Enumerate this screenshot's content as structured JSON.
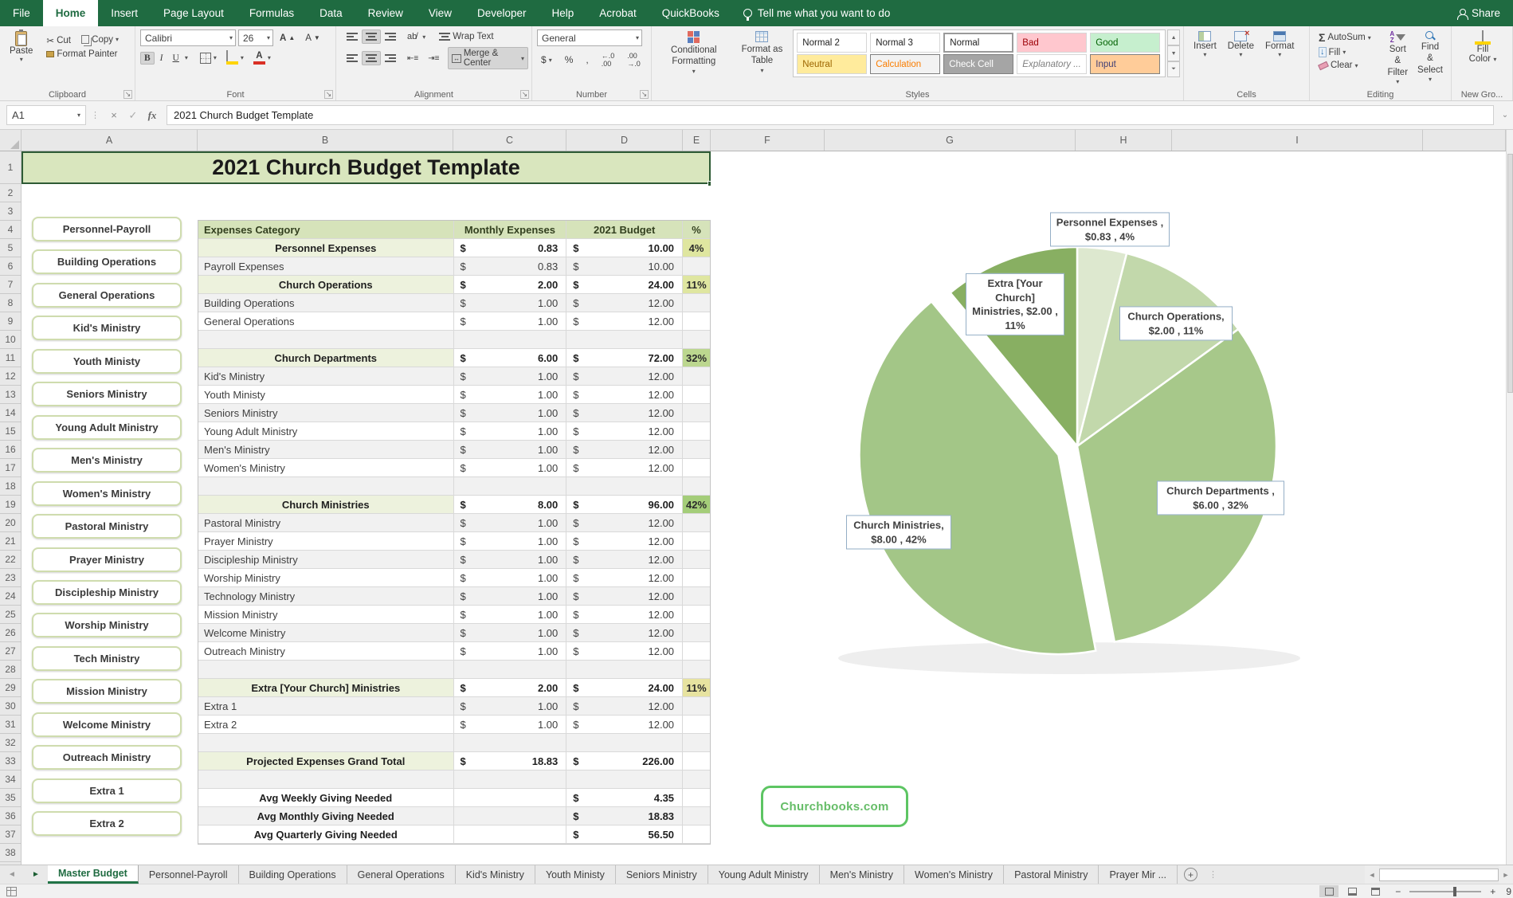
{
  "ribbon": {
    "tabs": [
      {
        "label": "File",
        "active": false
      },
      {
        "label": "Home",
        "active": true
      },
      {
        "label": "Insert",
        "active": false
      },
      {
        "label": "Page Layout",
        "active": false
      },
      {
        "label": "Formulas",
        "active": false
      },
      {
        "label": "Data",
        "active": false
      },
      {
        "label": "Review",
        "active": false
      },
      {
        "label": "View",
        "active": false
      },
      {
        "label": "Developer",
        "active": false
      },
      {
        "label": "Help",
        "active": false
      },
      {
        "label": "Acrobat",
        "active": false
      },
      {
        "label": "QuickBooks",
        "active": false
      }
    ],
    "tell_me": "Tell me what you want to do",
    "share_label": "Share",
    "clipboard": {
      "label": "Clipboard",
      "paste": "Paste",
      "cut": "Cut",
      "copy": "Copy",
      "format_painter": "Format Painter"
    },
    "font": {
      "label": "Font",
      "family": "Calibri",
      "size": "26"
    },
    "alignment": {
      "label": "Alignment",
      "wrap_text": "Wrap Text",
      "merge_center": "Merge & Center"
    },
    "number": {
      "label": "Number",
      "format": "General"
    },
    "styles": {
      "label": "Styles",
      "conditional": "Conditional Formatting",
      "format_table": "Format as Table",
      "gallery": [
        {
          "label": "Normal 2",
          "bg": "#ffffff",
          "color": "#1f1f1f"
        },
        {
          "label": "Normal 3",
          "bg": "#ffffff",
          "color": "#1f1f1f"
        },
        {
          "label": "Normal",
          "bg": "#ffffff",
          "color": "#1f1f1f",
          "selected": true
        },
        {
          "label": "Bad",
          "bg": "#ffc7ce",
          "color": "#9c0006"
        },
        {
          "label": "Good",
          "bg": "#c6efce",
          "color": "#006100"
        },
        {
          "label": "Neutral",
          "bg": "#ffeb9c",
          "color": "#9c6500"
        },
        {
          "label": "Calculation",
          "bg": "#f2f2f2",
          "color": "#fa7d00",
          "bordered": true
        },
        {
          "label": "Check Cell",
          "bg": "#a5a5a5",
          "color": "#ffffff",
          "bordered": true
        },
        {
          "label": "Explanatory ...",
          "bg": "#ffffff",
          "color": "#7f7f7f",
          "italic": true
        },
        {
          "label": "Input",
          "bg": "#ffcc99",
          "color": "#3f3f76",
          "bordered": true
        }
      ]
    },
    "cells": {
      "label": "Cells",
      "insert": "Insert",
      "delete": "Delete",
      "format": "Format"
    },
    "editing": {
      "label": "Editing",
      "autosum": "AutoSum",
      "fill": "Fill",
      "clear": "Clear",
      "sort_filter": "Sort & Filter",
      "find_select": "Find & Select"
    },
    "new_group": {
      "label": "New Gro...",
      "fill_color_line1": "Fill",
      "fill_color_line2": "Color"
    }
  },
  "formula_bar": {
    "name_box": "A1",
    "formula": "2021 Church Budget Template"
  },
  "grid": {
    "columns": [
      "A",
      "B",
      "C",
      "D",
      "E",
      "F",
      "G",
      "H",
      "I"
    ],
    "row_count": 39
  },
  "sheet": {
    "title": "2021 Church Budget Template",
    "nav_buttons": [
      "Personnel-Payroll",
      "Building Operations",
      "General Operations",
      "Kid's Ministry",
      "Youth Ministy",
      "Seniors Ministry",
      "Young Adult Ministry",
      "Men's Ministry",
      "Women's Ministry",
      "Pastoral Ministry",
      "Prayer Ministry",
      "Discipleship Ministry",
      "Worship Ministry",
      "Tech Ministry",
      "Mission Ministry",
      "Welcome Ministry",
      "Outreach Ministry",
      "Extra 1",
      "Extra 2"
    ],
    "table": {
      "headers": [
        "Expenses Category",
        "Monthly Expenses",
        "2021 Budget",
        "%"
      ],
      "currency_symbol": "$",
      "rows": [
        {
          "row": 5,
          "type": "category",
          "label": "Personnel Expenses",
          "monthly": "0.83",
          "budget": "10.00",
          "pct": "4%",
          "pct_bg": "#dfe6a0"
        },
        {
          "row": 6,
          "type": "item",
          "label": "Payroll Expenses",
          "monthly": "0.83",
          "budget": "10.00"
        },
        {
          "row": 7,
          "type": "category",
          "label": "Church Operations",
          "monthly": "2.00",
          "budget": "24.00",
          "pct": "11%",
          "pct_bg": "#dfe6a0"
        },
        {
          "row": 8,
          "type": "item",
          "label": "Building Operations",
          "monthly": "1.00",
          "budget": "12.00"
        },
        {
          "row": 9,
          "type": "item",
          "label": "General Operations",
          "monthly": "1.00",
          "budget": "12.00"
        },
        {
          "row": 10,
          "type": "blank"
        },
        {
          "row": 11,
          "type": "category",
          "label": "Church Departments",
          "monthly": "6.00",
          "budget": "72.00",
          "pct": "32%",
          "pct_bg": "#bcd78f"
        },
        {
          "row": 12,
          "type": "item",
          "label": "Kid's Ministry",
          "monthly": "1.00",
          "budget": "12.00"
        },
        {
          "row": 13,
          "type": "item",
          "label": "Youth Ministy",
          "monthly": "1.00",
          "budget": "12.00"
        },
        {
          "row": 14,
          "type": "item",
          "label": "Seniors Ministry",
          "monthly": "1.00",
          "budget": "12.00"
        },
        {
          "row": 15,
          "type": "item",
          "label": "Young Adult Ministry",
          "monthly": "1.00",
          "budget": "12.00"
        },
        {
          "row": 16,
          "type": "item",
          "label": "Men's Ministry",
          "monthly": "1.00",
          "budget": "12.00"
        },
        {
          "row": 17,
          "type": "item",
          "label": "Women's Ministry",
          "monthly": "1.00",
          "budget": "12.00"
        },
        {
          "row": 18,
          "type": "blank"
        },
        {
          "row": 19,
          "type": "category",
          "label": "Church Ministries",
          "monthly": "8.00",
          "budget": "96.00",
          "pct": "42%",
          "pct_bg": "#a4cd79"
        },
        {
          "row": 20,
          "type": "item",
          "label": "Pastoral Ministry",
          "monthly": "1.00",
          "budget": "12.00"
        },
        {
          "row": 21,
          "type": "item",
          "label": "Prayer Ministry",
          "monthly": "1.00",
          "budget": "12.00"
        },
        {
          "row": 22,
          "type": "item",
          "label": "Discipleship Ministry",
          "monthly": "1.00",
          "budget": "12.00"
        },
        {
          "row": 23,
          "type": "item",
          "label": "Worship Ministry",
          "monthly": "1.00",
          "budget": "12.00"
        },
        {
          "row": 24,
          "type": "item",
          "label": "Technology Ministry",
          "monthly": "1.00",
          "budget": "12.00"
        },
        {
          "row": 25,
          "type": "item",
          "label": "Mission Ministry",
          "monthly": "1.00",
          "budget": "12.00"
        },
        {
          "row": 26,
          "type": "item",
          "label": "Welcome Ministry",
          "monthly": "1.00",
          "budget": "12.00"
        },
        {
          "row": 27,
          "type": "item",
          "label": "Outreach Ministry",
          "monthly": "1.00",
          "budget": "12.00"
        },
        {
          "row": 28,
          "type": "blank"
        },
        {
          "row": 29,
          "type": "category",
          "label": "Extra [Your Church] Ministries",
          "monthly": "2.00",
          "budget": "24.00",
          "pct": "11%",
          "pct_bg": "#e7e3a0"
        },
        {
          "row": 30,
          "type": "item",
          "label": "Extra 1",
          "monthly": "1.00",
          "budget": "12.00"
        },
        {
          "row": 31,
          "type": "item",
          "label": "Extra 2",
          "monthly": "1.00",
          "budget": "12.00"
        },
        {
          "row": 32,
          "type": "blank"
        },
        {
          "row": 33,
          "type": "total",
          "label": "Projected Expenses Grand Total",
          "monthly": "18.83",
          "budget": "226.00"
        },
        {
          "row": 34,
          "type": "blank"
        },
        {
          "row": 35,
          "type": "avg",
          "label": "Avg Weekly Giving Needed",
          "monthly": "",
          "budget": "4.35"
        },
        {
          "row": 36,
          "type": "avg",
          "label": "Avg Monthly Giving Needed",
          "monthly": "",
          "budget": "18.83"
        },
        {
          "row": 37,
          "type": "avg",
          "label": "Avg Quarterly Giving Needed",
          "monthly": "",
          "budget": "56.50"
        }
      ]
    },
    "link_button": "Churchbooks.com"
  },
  "chart_data": {
    "type": "pie",
    "title": "",
    "legend": "none",
    "labels_style": "callout-boxes",
    "slices": [
      {
        "name": "Personnel Expenses",
        "value": 0.83,
        "pct": 4,
        "color": "#dde8cf",
        "exploded": false,
        "label": "Personnel Expenses , $0.83 , 4%"
      },
      {
        "name": "Church Operations",
        "value": 2.0,
        "pct": 11,
        "color": "#c2d8ab",
        "exploded": false,
        "label": "Church Operations, $2.00 , 11%"
      },
      {
        "name": "Church Departments",
        "value": 6.0,
        "pct": 32,
        "color": "#a7c88a",
        "exploded": false,
        "label": "Church Departments , $6.00 , 32%"
      },
      {
        "name": "Church Ministries",
        "value": 8.0,
        "pct": 42,
        "color": "#a3c687",
        "exploded": true,
        "label": "Church Ministries, $8.00 , 42%"
      },
      {
        "name": "Extra [Your Church] Ministries",
        "value": 2.0,
        "pct": 11,
        "color": "#88af62",
        "exploded": false,
        "label": "Extra [Your Church] Ministries, $2.00 , 11%"
      }
    ]
  },
  "tab_bar": {
    "tabs": [
      "Master Budget",
      "Personnel-Payroll",
      "Building Operations",
      "General Operations",
      "Kid's Ministry",
      "Youth Ministy",
      "Seniors Ministry",
      "Young Adult Ministry",
      "Men's Ministry",
      "Women's Ministry",
      "Pastoral Ministry",
      "Prayer Mir ..."
    ],
    "active": "Master Budget"
  },
  "status_bar": {
    "zoom_label": "9"
  }
}
